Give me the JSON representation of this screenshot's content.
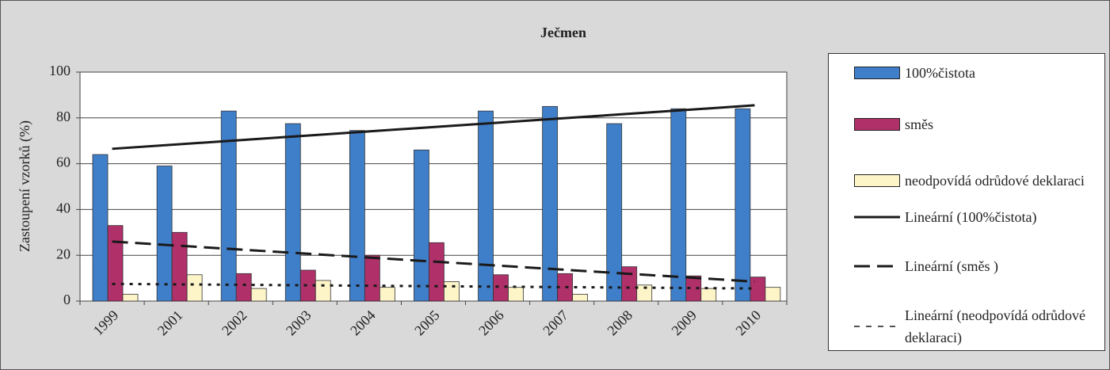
{
  "chart_data": {
    "type": "bar",
    "title": "Ječmen",
    "y_label": "Zastoupení vzorků (%)",
    "categories": [
      "1999",
      "2001",
      "2002",
      "2003",
      "2004",
      "2005",
      "2006",
      "2007",
      "2008",
      "2009",
      "2010"
    ],
    "series": [
      {
        "name": "100%čistota",
        "color": "#3f7fc9",
        "values": [
          64,
          59,
          83,
          77.5,
          74.5,
          66,
          83,
          85,
          77.5,
          84,
          84
        ]
      },
      {
        "name": "směs",
        "color": "#b0306a",
        "values": [
          33,
          30,
          12,
          13.5,
          20,
          25.5,
          11.5,
          12,
          15,
          11,
          10.5
        ]
      },
      {
        "name": "neodpovídá odrůdové deklaraci",
        "color": "#fdf5c8",
        "values": [
          3,
          11.5,
          5.5,
          9,
          6,
          8.5,
          6,
          3,
          7,
          5.5,
          6
        ]
      }
    ],
    "trendlines": [
      {
        "name": "Lineární (100%čistota)",
        "style": "solid",
        "color": "#1a1a1a",
        "values": [
          66.5,
          85.5
        ]
      },
      {
        "name": "Lineární (směs )",
        "style": "dashed",
        "color": "#1a1a1a",
        "values": [
          26,
          8.5
        ]
      },
      {
        "name": "Lineární (neodpovídá odrůdové deklaraci)",
        "style": "dotted",
        "color": "#1a1a1a",
        "values": [
          7.5,
          5.5
        ]
      }
    ],
    "ylim": [
      0,
      100
    ],
    "yticks": [
      0,
      20,
      40,
      60,
      80,
      100
    ],
    "grid": true
  }
}
